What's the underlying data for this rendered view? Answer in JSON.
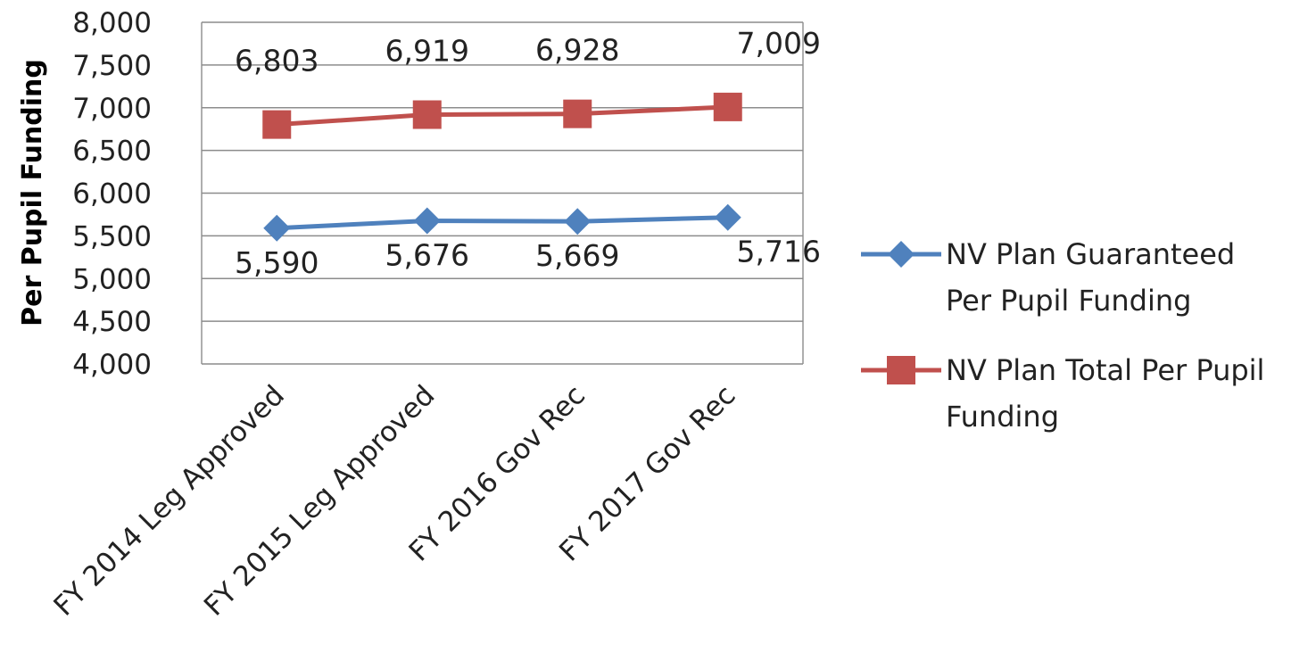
{
  "chart_data": {
    "type": "line",
    "ylabel": "Per Pupil Funding",
    "xlabel": "",
    "categories": [
      "FY 2014 Leg Approved",
      "FY 2015 Leg Approved",
      "FY 2016 Gov Rec",
      "FY 2017 Gov Rec"
    ],
    "ylim": [
      4000,
      8000
    ],
    "yticks": [
      {
        "value": 4000,
        "label": "4,000"
      },
      {
        "value": 4500,
        "label": "4,500"
      },
      {
        "value": 5000,
        "label": "5,000"
      },
      {
        "value": 5500,
        "label": "5,500"
      },
      {
        "value": 6000,
        "label": "6,000"
      },
      {
        "value": 6500,
        "label": "6,500"
      },
      {
        "value": 7000,
        "label": "7,000"
      },
      {
        "value": 7500,
        "label": "7,500"
      },
      {
        "value": 8000,
        "label": "8,000"
      }
    ],
    "grid": true,
    "legend_position": "right",
    "series": [
      {
        "name": "NV Plan Guaranteed Per Pupil Funding",
        "legend_lines": [
          "NV Plan Guaranteed",
          "Per Pupil Funding"
        ],
        "marker": "diamond",
        "color": "#4f81bd",
        "values": [
          5590,
          5676,
          5669,
          5716
        ],
        "labels": [
          "5,590",
          "5,676",
          "5,669",
          "5,716"
        ]
      },
      {
        "name": "NV Plan Total Per Pupil Funding",
        "legend_lines": [
          "NV Plan Total Per Pupil",
          "Funding"
        ],
        "marker": "square",
        "color": "#c0504d",
        "values": [
          6803,
          6919,
          6928,
          7009
        ],
        "labels": [
          "6,803",
          "6,919",
          "6,928",
          "7,009"
        ]
      }
    ]
  }
}
